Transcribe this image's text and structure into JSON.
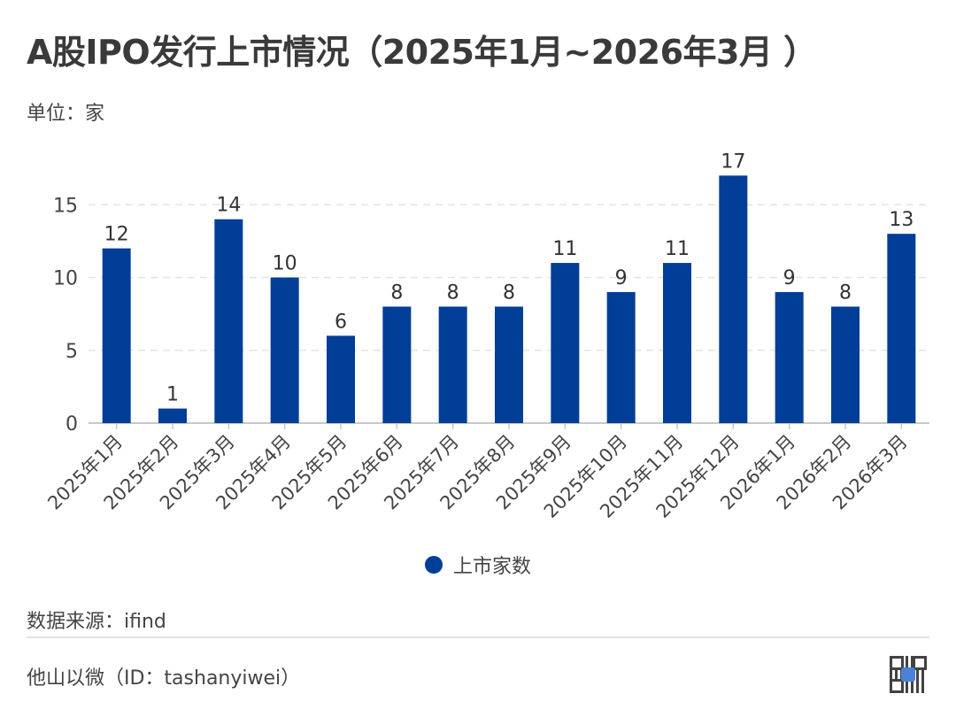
{
  "title": "A股IPO发行上市情况（2025年1月~2026年3月 ）",
  "unit_label": "单位：家",
  "legend": {
    "series_name": "上市家数",
    "color": "#003e97"
  },
  "footer": {
    "source": "数据来源：ifind",
    "account": "他山以微（ID：tashanyiwei）",
    "qr_code": "qr-code-icon"
  },
  "chart_data": {
    "type": "bar",
    "title": "A股IPO发行上市情况（2025年1月~2026年3月 ）",
    "xlabel": "",
    "ylabel": "单位：家",
    "categories": [
      "2025年1月",
      "2025年2月",
      "2025年3月",
      "2025年4月",
      "2025年5月",
      "2025年6月",
      "2025年7月",
      "2025年8月",
      "2025年9月",
      "2025年10月",
      "2025年11月",
      "2025年12月",
      "2026年1月",
      "2026年2月",
      "2026年3月"
    ],
    "series": [
      {
        "name": "上市家数",
        "values": [
          12,
          1,
          14,
          10,
          6,
          8,
          8,
          8,
          11,
          9,
          11,
          17,
          9,
          8,
          13
        ],
        "color": "#003e97"
      }
    ],
    "ylim": [
      0,
      17
    ],
    "yticks": [
      0,
      5,
      10,
      15
    ],
    "grid": true,
    "grid_style": "dashed",
    "data_labels": true,
    "legend_position": "bottom"
  }
}
